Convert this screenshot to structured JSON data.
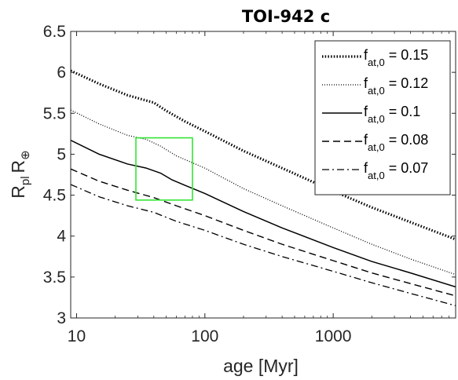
{
  "chart_data": {
    "type": "line",
    "title": "TOI-942 c",
    "xlabel": "age [Myr]",
    "ylabel": "R_pl R_⊕",
    "x_scale": "log",
    "xlim": [
      9,
      9000
    ],
    "ylim": [
      3,
      6.5
    ],
    "x_ticks": [
      10,
      100,
      1000
    ],
    "x_tick_labels": [
      "10",
      "100",
      "1000"
    ],
    "y_ticks": [
      3,
      3.5,
      4,
      4.5,
      5,
      5.5,
      6,
      6.5
    ],
    "y_tick_labels": [
      "3",
      "3.5",
      "4",
      "4.5",
      "5",
      "5.5",
      "6",
      "6.5"
    ],
    "grid": false,
    "legend_position": "top-right",
    "series": [
      {
        "name": "f_at,0 = 0.15",
        "legend_base": "f",
        "legend_sub": "at,0",
        "legend_value": " = 0.15",
        "style": "dotted-thick",
        "x": [
          9,
          15,
          25,
          40,
          50,
          70,
          100,
          200,
          400,
          1000,
          2000,
          4000,
          9000
        ],
        "y": [
          6.02,
          5.86,
          5.72,
          5.63,
          5.53,
          5.4,
          5.28,
          5.04,
          4.83,
          4.55,
          4.35,
          4.17,
          3.96
        ]
      },
      {
        "name": "f_at,0 = 0.12",
        "legend_base": "f",
        "legend_sub": "at,0",
        "legend_value": " = 0.12",
        "style": "dotted-thin",
        "x": [
          9,
          15,
          25,
          35,
          45,
          60,
          100,
          200,
          400,
          1000,
          2000,
          4000,
          9000
        ],
        "y": [
          5.54,
          5.37,
          5.23,
          5.18,
          5.1,
          4.98,
          4.83,
          4.58,
          4.37,
          4.1,
          3.9,
          3.72,
          3.53
        ]
      },
      {
        "name": "f_at,0 = 0.1",
        "legend_base": "f",
        "legend_sub": "at,0",
        "legend_value": " = 0.1",
        "style": "solid",
        "x": [
          9,
          15,
          25,
          35,
          45,
          55,
          70,
          100,
          200,
          400,
          1000,
          2000,
          4000,
          9000
        ],
        "y": [
          5.17,
          5.0,
          4.88,
          4.83,
          4.77,
          4.69,
          4.62,
          4.52,
          4.3,
          4.1,
          3.86,
          3.69,
          3.55,
          3.38
        ]
      },
      {
        "name": "f_at,0 = 0.08",
        "legend_base": "f",
        "legend_sub": "at,0",
        "legend_value": " = 0.08",
        "style": "dashed",
        "x": [
          9,
          15,
          25,
          40,
          60,
          100,
          200,
          400,
          1000,
          2000,
          4000,
          9000
        ],
        "y": [
          4.82,
          4.67,
          4.56,
          4.47,
          4.37,
          4.25,
          4.07,
          3.9,
          3.7,
          3.55,
          3.42,
          3.27
        ]
      },
      {
        "name": "f_at,0 = 0.07",
        "legend_base": "f",
        "legend_sub": "at,0",
        "legend_value": " = 0.07",
        "style": "dashdot",
        "x": [
          9,
          15,
          25,
          40,
          60,
          100,
          200,
          400,
          1000,
          2000,
          4000,
          9000
        ],
        "y": [
          4.63,
          4.48,
          4.37,
          4.29,
          4.18,
          4.07,
          3.9,
          3.75,
          3.57,
          3.43,
          3.3,
          3.15
        ]
      }
    ],
    "highlight_box": {
      "x": [
        29,
        80
      ],
      "y": [
        4.44,
        5.2
      ],
      "color": "#33e633"
    },
    "colors": {
      "lines": "#000000",
      "axes": "#262626",
      "highlight": "#33e633"
    }
  }
}
